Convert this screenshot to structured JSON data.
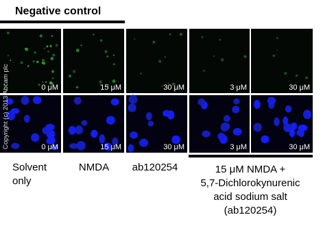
{
  "header": {
    "title": "Negative control"
  },
  "copyright": "Copyright (c) 2013 Abcam plc",
  "panel_labels": [
    "0 μM",
    "15 μM",
    "30 μM",
    "3 μM",
    "30 μM"
  ],
  "column_labels": [
    [
      "Solvent",
      "only"
    ],
    [
      "NMDA"
    ],
    [
      "ab120254"
    ]
  ],
  "group_label": [
    "15 μM NMDA +",
    "5,7-Dichlorokynurenic",
    "acid sodium salt",
    "(ab120254)"
  ]
}
